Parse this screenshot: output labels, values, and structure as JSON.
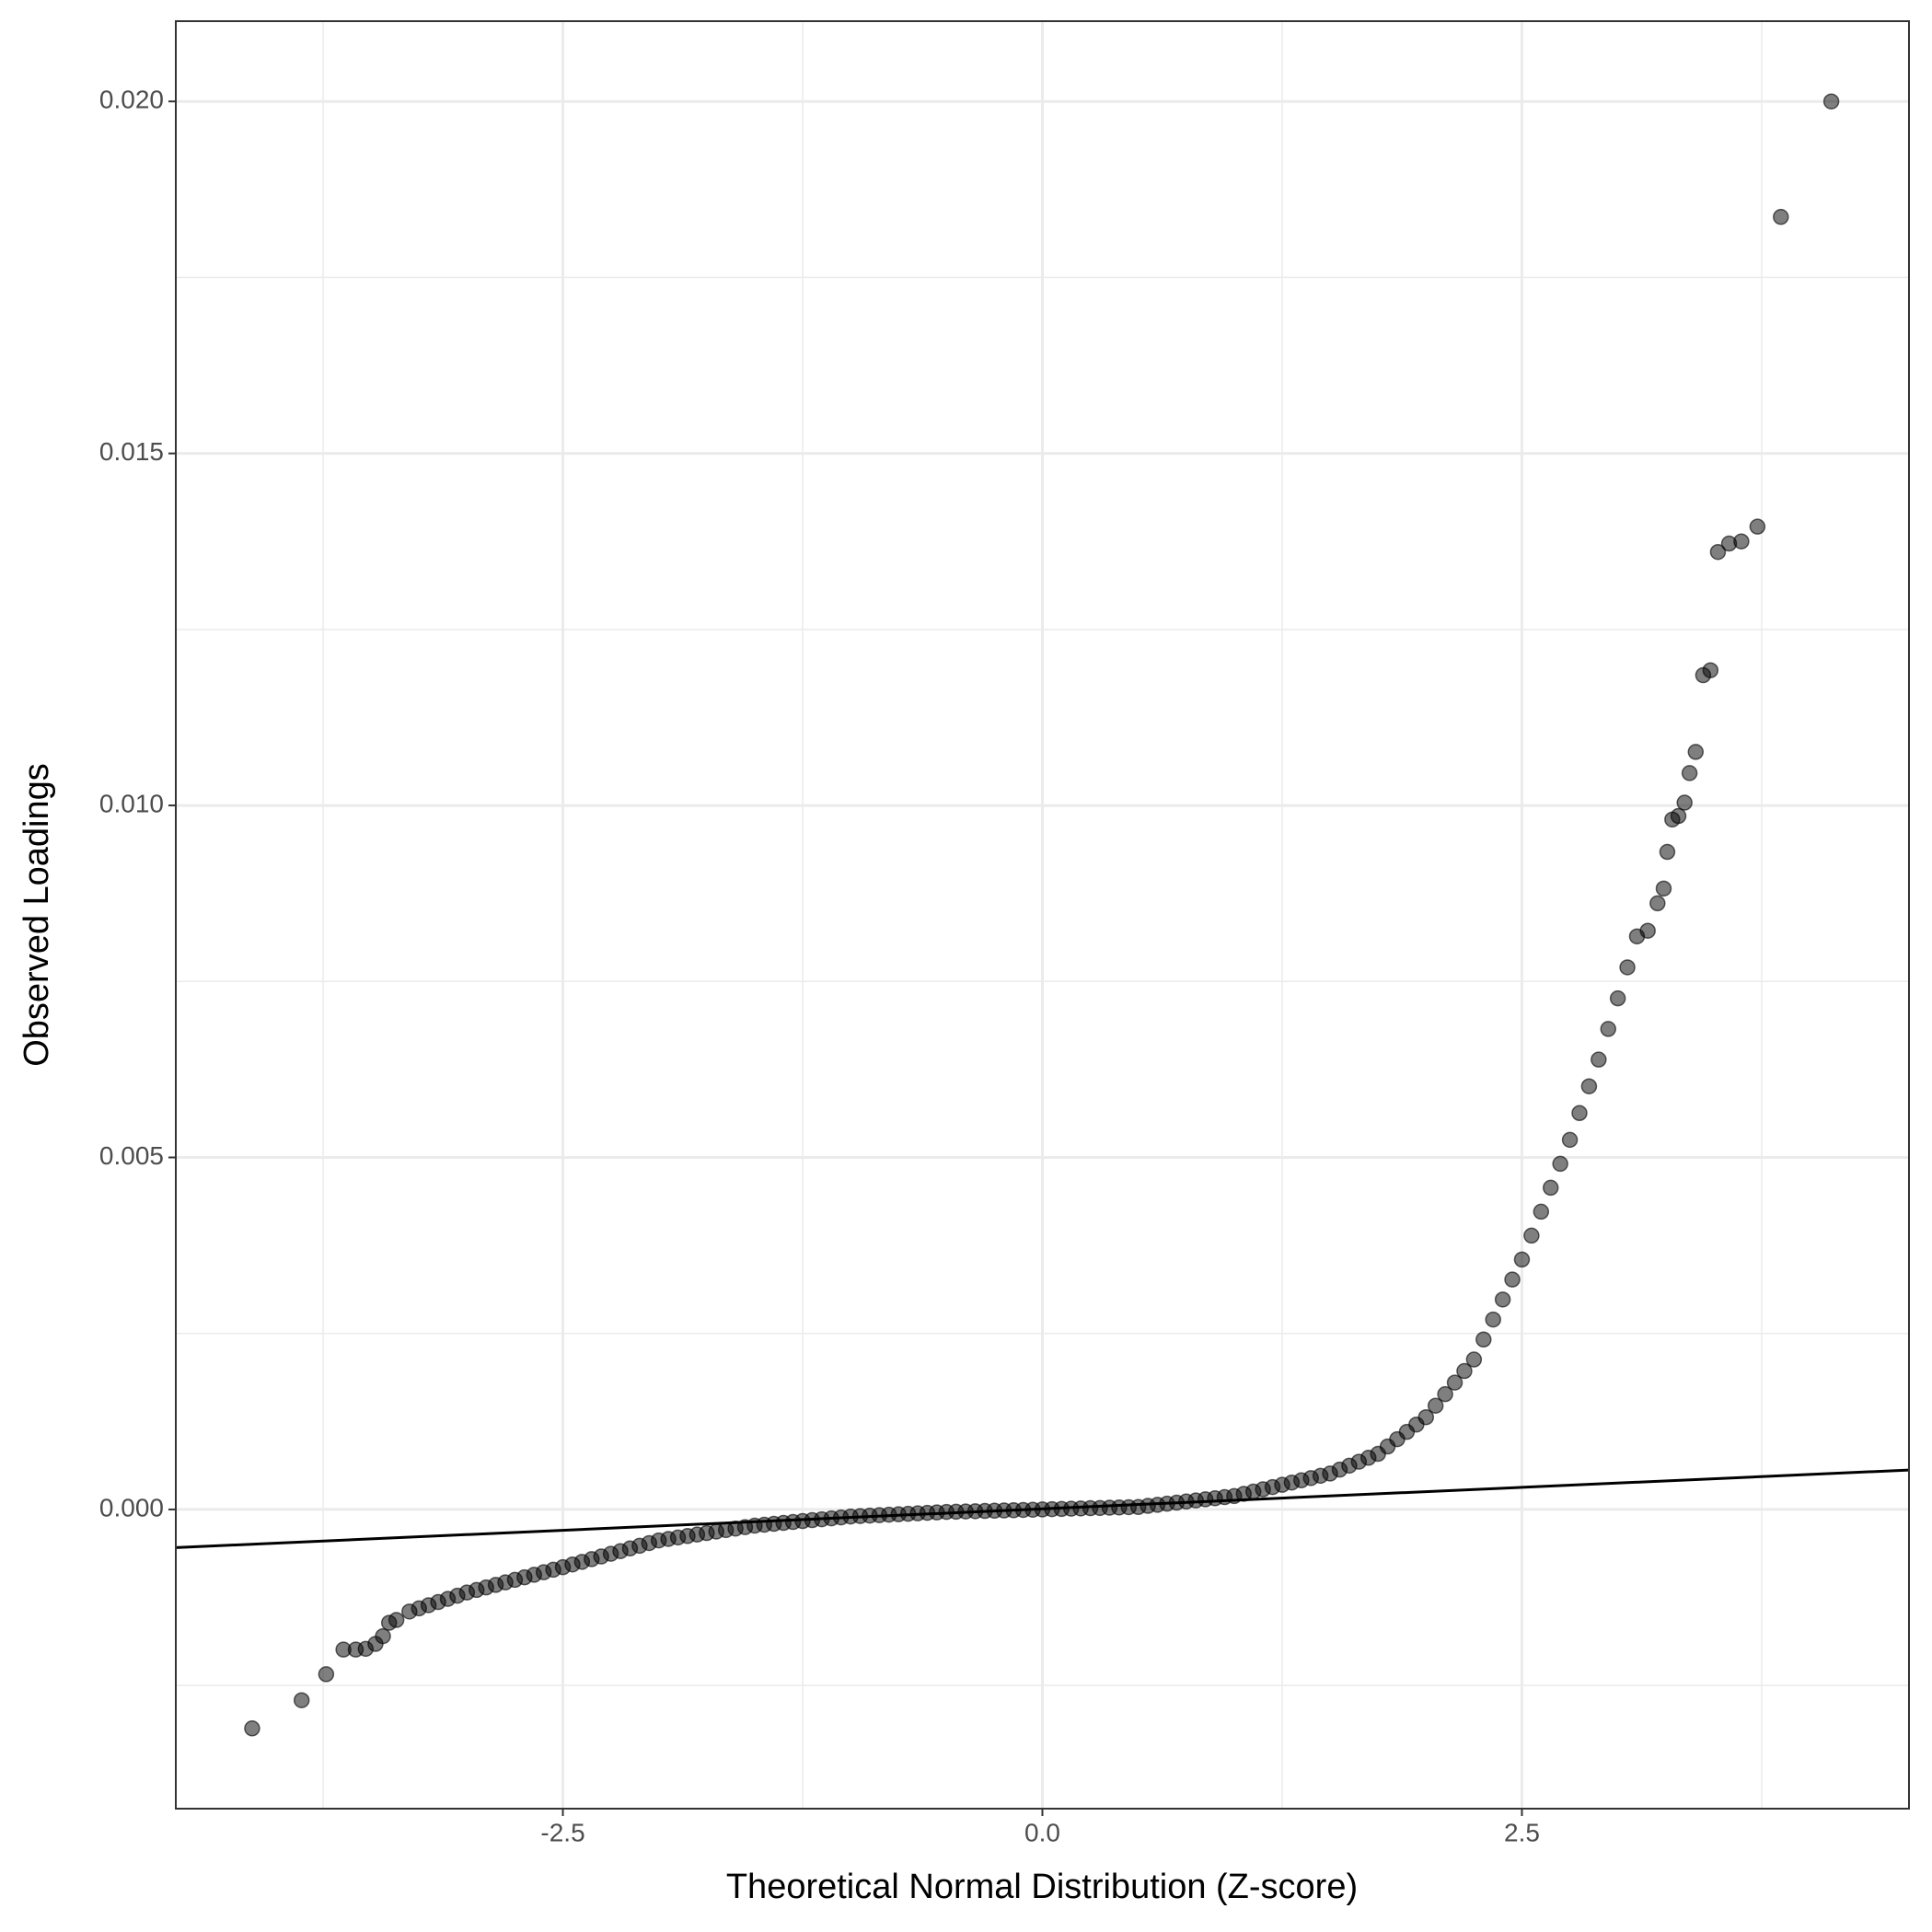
{
  "chart_data": {
    "type": "scatter",
    "x_label": "Theoretical Normal Distribution (Z-score)",
    "y_label": "Observed Loadings",
    "xlim": [
      -4.518,
      4.518
    ],
    "ylim": [
      -0.00425,
      0.02114
    ],
    "xticks": [
      -2.5,
      {
        "value": 0,
        "label": "0.0"
      },
      2.5
    ],
    "yticks": [
      {
        "value": 0,
        "label": "0.000"
      },
      {
        "value": 0.005,
        "label": "0.005"
      },
      {
        "value": 0.01,
        "label": "0.010"
      },
      {
        "value": 0.015,
        "label": "0.015"
      },
      {
        "value": 0.02,
        "label": "0.020"
      }
    ],
    "minor_xticks": [
      -3.75,
      -1.25,
      1.25,
      3.75
    ],
    "minor_yticks": [
      -0.0025,
      0.0025,
      0.0075,
      0.0125,
      0.0175
    ],
    "grid": true,
    "points": {
      "color": "#000000",
      "x": [
        -4.12,
        -3.862,
        -3.734,
        -3.644,
        -3.58,
        -3.528,
        -3.477,
        -3.438,
        -3.406,
        -3.368,
        -3.3,
        -3.25,
        -3.2,
        -3.15,
        -3.1,
        -3.05,
        -3.0,
        -2.95,
        -2.9,
        -2.85,
        -2.8,
        -2.75,
        -2.7,
        -2.65,
        -2.6,
        -2.55,
        -2.5,
        -2.45,
        -2.4,
        -2.35,
        -2.3,
        -2.25,
        -2.2,
        -2.15,
        -2.1,
        -2.05,
        -2.0,
        -1.95,
        -1.9,
        -1.85,
        -1.8,
        -1.75,
        -1.7,
        -1.65,
        -1.6,
        -1.55,
        -1.5,
        -1.45,
        -1.4,
        -1.35,
        -1.3,
        -1.25,
        -1.2,
        -1.15,
        -1.1,
        -1.05,
        -1.0,
        -0.95,
        -0.9,
        -0.85,
        -0.8,
        -0.75,
        -0.7,
        -0.65,
        -0.6,
        -0.55,
        -0.5,
        -0.45,
        -0.4,
        -0.35,
        -0.3,
        -0.25,
        -0.2,
        -0.15,
        -0.1,
        -0.05,
        0,
        0.05,
        0.1,
        0.15,
        0.2,
        0.25,
        0.3,
        0.35,
        0.4,
        0.45,
        0.5,
        0.55,
        0.6,
        0.65,
        0.7,
        0.75,
        0.8,
        0.85,
        0.9,
        0.95,
        1.0,
        1.05,
        1.1,
        1.15,
        1.2,
        1.25,
        1.3,
        1.35,
        1.4,
        1.45,
        1.5,
        1.55,
        1.6,
        1.65,
        1.7,
        1.75,
        1.8,
        1.85,
        1.9,
        1.95,
        2.0,
        2.05,
        2.1,
        2.15,
        2.2,
        2.25,
        2.3,
        2.35,
        2.4,
        2.45,
        2.5,
        2.55,
        2.6,
        2.65,
        2.7,
        2.75,
        2.8,
        2.85,
        2.9,
        2.95,
        3.0,
        3.05,
        3.1,
        3.156,
        3.207,
        3.239,
        3.258,
        3.284,
        3.316,
        3.348,
        3.374,
        3.406,
        3.445,
        3.483,
        3.522,
        3.58,
        3.644,
        3.728,
        3.85,
        4.113
      ],
      "y": [
        -0.00311,
        -0.00271,
        -0.00234,
        -0.00199,
        -0.00199,
        -0.00198,
        -0.00191,
        -0.0018,
        -0.00161,
        -0.00157,
        -0.00145,
        -0.001405,
        -0.00136,
        -0.001315,
        -0.00127,
        -0.001225,
        -0.00118,
        -0.001144,
        -0.001108,
        -0.001072,
        -0.001036,
        -0.001,
        -0.000964,
        -0.000928,
        -0.000892,
        -0.000856,
        -0.00082,
        -0.000782,
        -0.000744,
        -0.000706,
        -0.000668,
        -0.00063,
        -0.000592,
        -0.000554,
        -0.000516,
        -0.000478,
        -0.00044,
        -0.000419,
        -0.000398,
        -0.000377,
        -0.000356,
        -0.000335,
        -0.000314,
        -0.000293,
        -0.000272,
        -0.000251,
        -0.00023,
        -0.000217,
        -0.000204,
        -0.000191,
        -0.000178,
        -0.000165,
        -0.000152,
        -0.000139,
        -0.000126,
        -0.000113,
        -0.0001,
        -9.4e-05,
        -8.7e-05,
        -8.1e-05,
        -7.4e-05,
        -6.8e-05,
        -6.1e-05,
        -5.5e-05,
        -4.8e-05,
        -4.2e-05,
        -3.5e-05,
        -3.2e-05,
        -2.8e-05,
        -2.5e-05,
        -2.1e-05,
        -1.8e-05,
        -1.4e-05,
        -1.1e-05,
        -7e-06,
        -4e-06,
        0,
        4e-06,
        7e-06,
        1.1e-05,
        1.4e-05,
        1.8e-05,
        2.1e-05,
        2.5e-05,
        2.8e-05,
        3.2e-05,
        3.5e-05,
        5.1e-05,
        6.6e-05,
        8.2e-05,
        9.7e-05,
        0.000113,
        0.000128,
        0.000144,
        0.000159,
        0.000175,
        0.00019,
        0.000222,
        0.000254,
        0.000286,
        0.000318,
        0.00035,
        0.000382,
        0.000414,
        0.000446,
        0.000478,
        0.00051,
        0.000566,
        0.000622,
        0.000678,
        0.000734,
        0.00079,
        0.000894,
        0.000998,
        0.001102,
        0.001206,
        0.00131,
        0.001474,
        0.001638,
        0.001802,
        0.001966,
        0.00213,
        0.002414,
        0.002698,
        0.002982,
        0.003266,
        0.00355,
        0.00389,
        0.00423,
        0.00457,
        0.00491,
        0.00525,
        0.00563,
        0.00601,
        0.00639,
        0.006825,
        0.00726,
        0.0077,
        0.00814,
        0.00822,
        0.00861,
        0.00882,
        0.00934,
        0.0098,
        0.00985,
        0.01004,
        0.01046,
        0.01076,
        0.01185,
        0.01192,
        0.0136,
        0.01372,
        0.01375,
        0.01396,
        0.01836,
        0.02
      ]
    },
    "reference_line": {
      "color": "#000000",
      "x": [
        -4.518,
        4.518
      ],
      "y": [
        -0.000542,
        0.00056
      ]
    }
  }
}
